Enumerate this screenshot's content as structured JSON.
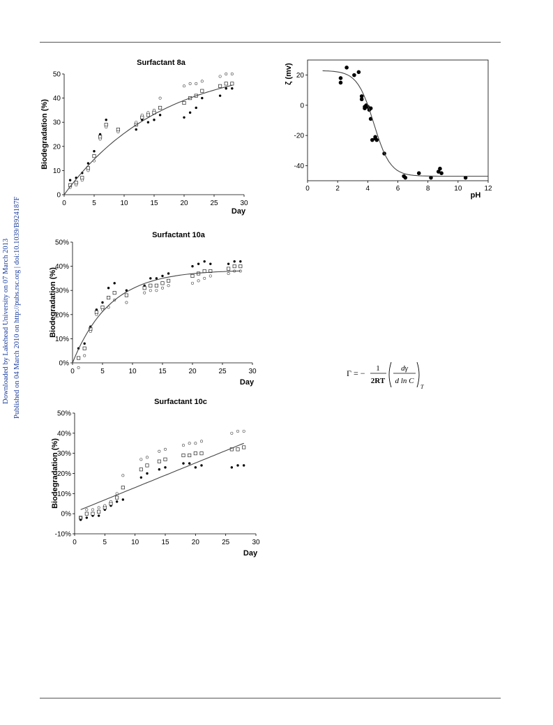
{
  "side_text": {
    "line1": "Downloaded by Lakehead University on 07 March 2013",
    "line2": "Published on 04 March 2010 on http://pubs.rsc.org | doi:10.1039/B924187F"
  },
  "equation": {
    "lhs": "Γ = −",
    "num": "1",
    "den": "2RT",
    "dnum": "dγ",
    "dden": "d ln C",
    "sub": "T"
  },
  "chart_data": [
    {
      "type": "scatter",
      "title": "Surfactant 8a",
      "xlabel": "Day",
      "ylabel": "Biodegradation (%)",
      "xlim": [
        0,
        30
      ],
      "ylim": [
        0,
        50
      ],
      "xticks": [
        0,
        5,
        10,
        15,
        20,
        25,
        30
      ],
      "yticks": [
        0,
        10,
        20,
        30,
        40,
        50
      ],
      "ytick_labels": [
        "0",
        "10",
        "20",
        "30",
        "40",
        "50"
      ],
      "marker_colors": {
        "filled": "#000000",
        "open": "#333333"
      },
      "series": [
        {
          "marker": "filled-circle",
          "x": [
            1,
            2,
            3,
            4,
            5,
            6,
            7,
            9,
            12,
            13,
            14,
            15,
            16,
            20,
            21,
            22,
            23,
            26,
            27,
            28
          ],
          "y": [
            6,
            7,
            9,
            13,
            18,
            25,
            31,
            27,
            27,
            31,
            30,
            31,
            33,
            32,
            34,
            36,
            40,
            41,
            44,
            44
          ]
        },
        {
          "marker": "open-square",
          "x": [
            1,
            2,
            3,
            4,
            5,
            6,
            7,
            9,
            12,
            13,
            14,
            15,
            16,
            20,
            21,
            22,
            23,
            26,
            27,
            28
          ],
          "y": [
            4,
            5,
            7,
            11,
            16,
            24,
            29,
            27,
            29,
            32,
            33,
            34,
            36,
            38,
            40,
            41,
            43,
            45,
            46,
            46
          ]
        },
        {
          "marker": "open-circle",
          "x": [
            1,
            2,
            3,
            4,
            5,
            6,
            7,
            9,
            12,
            13,
            14,
            15,
            16,
            20,
            21,
            22,
            23,
            26,
            27,
            28
          ],
          "y": [
            3,
            4,
            6,
            10,
            14,
            23,
            28,
            26,
            30,
            33,
            34,
            35,
            40,
            45,
            46,
            46,
            47,
            49,
            50,
            50
          ]
        },
        {
          "marker": "fit-line",
          "model": "exp",
          "ymax": 55,
          "k": 0.062,
          "x0": 0,
          "x1": 28
        }
      ]
    },
    {
      "type": "scatter",
      "title": "Surfactant 10a",
      "xlabel": "Day",
      "ylabel": "Biodegradation (%)",
      "xlim": [
        0,
        30
      ],
      "ylim": [
        0,
        50
      ],
      "xticks": [
        0,
        5,
        10,
        15,
        20,
        25,
        30
      ],
      "yticks": [
        0,
        10,
        20,
        30,
        40,
        50
      ],
      "ytick_labels": [
        "0%",
        "10%",
        "20%",
        "30%",
        "40%",
        "50%"
      ],
      "series": [
        {
          "marker": "filled-circle",
          "x": [
            1,
            2,
            3,
            4,
            5,
            6,
            7,
            9,
            12,
            13,
            14,
            15,
            16,
            20,
            21,
            22,
            23,
            26,
            27,
            28
          ],
          "y": [
            6,
            8,
            15,
            22,
            25,
            31,
            33,
            30,
            32,
            35,
            35,
            36,
            37,
            40,
            41,
            42,
            41,
            41,
            42,
            42
          ]
        },
        {
          "marker": "open-square",
          "x": [
            1,
            2,
            3,
            4,
            5,
            6,
            7,
            9,
            12,
            13,
            14,
            15,
            16,
            20,
            21,
            22,
            23,
            26,
            27,
            28
          ],
          "y": [
            2,
            6,
            14,
            21,
            23,
            27,
            29,
            28,
            31,
            32,
            32,
            33,
            34,
            36,
            37,
            38,
            38,
            39,
            40,
            40
          ]
        },
        {
          "marker": "open-circle",
          "x": [
            1,
            2,
            3,
            4,
            5,
            6,
            7,
            9,
            12,
            13,
            14,
            15,
            16,
            20,
            21,
            22,
            23,
            26,
            27,
            28
          ],
          "y": [
            -2,
            3,
            13,
            20,
            22,
            23,
            26,
            25,
            29,
            30,
            30,
            31,
            32,
            33,
            34,
            35,
            36,
            37,
            38,
            38
          ]
        },
        {
          "marker": "fit-line",
          "model": "exp",
          "ymax": 38.5,
          "k": 0.16,
          "x0": 0,
          "x1": 28
        }
      ]
    },
    {
      "type": "scatter",
      "title": "Surfactant 10c",
      "xlabel": "Day",
      "ylabel": "Biodegradation (%)",
      "xlim": [
        0,
        30
      ],
      "ylim": [
        -10,
        50
      ],
      "xticks": [
        0,
        5,
        10,
        15,
        20,
        25,
        30
      ],
      "yticks": [
        -10,
        0,
        10,
        20,
        30,
        40,
        50
      ],
      "ytick_labels": [
        "-10%",
        "0%",
        "10%",
        "20%",
        "30%",
        "40%",
        "50%"
      ],
      "series": [
        {
          "marker": "filled-circle",
          "x": [
            1,
            2,
            3,
            4,
            5,
            6,
            7,
            8,
            11,
            12,
            14,
            15,
            18,
            19,
            20,
            21,
            26,
            27,
            28
          ],
          "y": [
            -3,
            -2,
            -1,
            -1,
            2,
            4,
            6,
            7,
            18,
            20,
            22,
            23,
            25,
            25,
            23,
            24,
            23,
            24,
            24
          ]
        },
        {
          "marker": "open-square",
          "x": [
            1,
            2,
            3,
            4,
            5,
            6,
            7,
            8,
            11,
            12,
            14,
            15,
            18,
            19,
            20,
            21,
            26,
            27,
            28
          ],
          "y": [
            -2,
            0,
            0,
            1,
            3,
            5,
            8,
            13,
            22,
            24,
            26,
            27,
            29,
            29,
            30,
            30,
            32,
            32,
            33
          ]
        },
        {
          "marker": "open-circle",
          "x": [
            1,
            2,
            3,
            4,
            5,
            6,
            7,
            8,
            11,
            12,
            14,
            15,
            18,
            19,
            20,
            21,
            26,
            27,
            28
          ],
          "y": [
            -2,
            2,
            2,
            3,
            4,
            6,
            10,
            19,
            27,
            28,
            31,
            32,
            34,
            35,
            35,
            36,
            40,
            41,
            41
          ]
        },
        {
          "marker": "fit-line",
          "model": "linear",
          "x0": 1,
          "y0": 2,
          "x1": 28,
          "y1": 35
        }
      ]
    },
    {
      "type": "scatter",
      "title": "",
      "xlabel": "pH",
      "ylabel": "ζ (mv)",
      "xlim": [
        0,
        12
      ],
      "ylim": [
        -50,
        30
      ],
      "xticks": [
        0,
        2,
        4,
        6,
        8,
        10,
        12
      ],
      "yticks": [
        -40,
        -20,
        0,
        20
      ],
      "ytick_labels": [
        "-40",
        "-20",
        "0",
        "20"
      ],
      "series": [
        {
          "marker": "filled-circle",
          "x": [
            2.2,
            2.2,
            2.6,
            3.1,
            3.4,
            3.6,
            3.6,
            3.8,
            3.8,
            3.9,
            4.0,
            4.1,
            4.2,
            4.2,
            4.3,
            4.5,
            4.5,
            4.6,
            5.1,
            6.4,
            6.5,
            7.4,
            8.2,
            8.7,
            8.8,
            8.9,
            10.5
          ],
          "y": [
            18,
            15,
            25,
            20,
            22,
            6,
            4,
            -1,
            -2,
            0,
            -1,
            -3,
            -2,
            -9,
            -23,
            -22,
            -21,
            -23,
            -32,
            -47,
            -48,
            -45,
            -48,
            -44,
            -42,
            -45,
            -48
          ]
        },
        {
          "marker": "fit-line",
          "model": "sigmoid",
          "top": 23,
          "bottom": -47,
          "mid": 4.4,
          "width": 0.55,
          "x0": 1,
          "x1": 12
        }
      ]
    }
  ]
}
